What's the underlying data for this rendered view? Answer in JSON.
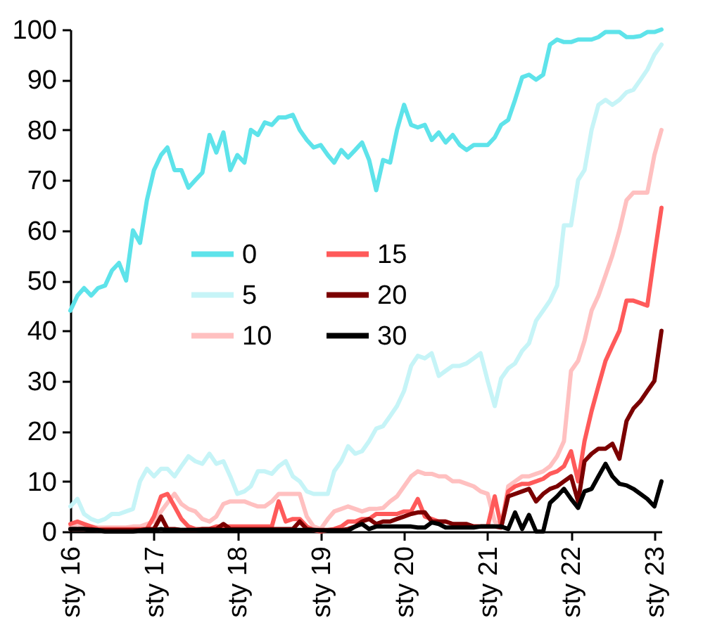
{
  "chart_data": {
    "type": "line",
    "x": [
      "2016-01",
      "2016-02",
      "2016-03",
      "2016-04",
      "2016-05",
      "2016-06",
      "2016-07",
      "2016-08",
      "2016-09",
      "2016-10",
      "2016-11",
      "2016-12",
      "2017-01",
      "2017-02",
      "2017-03",
      "2017-04",
      "2017-05",
      "2017-06",
      "2017-07",
      "2017-08",
      "2017-09",
      "2017-10",
      "2017-11",
      "2017-12",
      "2018-01",
      "2018-02",
      "2018-03",
      "2018-04",
      "2018-05",
      "2018-06",
      "2018-07",
      "2018-08",
      "2018-09",
      "2018-10",
      "2018-11",
      "2018-12",
      "2019-01",
      "2019-02",
      "2019-03",
      "2019-04",
      "2019-05",
      "2019-06",
      "2019-07",
      "2019-08",
      "2019-09",
      "2019-10",
      "2019-11",
      "2019-12",
      "2020-01",
      "2020-02",
      "2020-03",
      "2020-04",
      "2020-05",
      "2020-06",
      "2020-07",
      "2020-08",
      "2020-09",
      "2020-10",
      "2020-11",
      "2020-12",
      "2021-01",
      "2021-02",
      "2021-03",
      "2021-04",
      "2021-05",
      "2021-06",
      "2021-07",
      "2021-08",
      "2021-09",
      "2021-10",
      "2021-11",
      "2021-12",
      "2022-01",
      "2022-02",
      "2022-03",
      "2022-04",
      "2022-05",
      "2022-06",
      "2022-07",
      "2022-08",
      "2022-09",
      "2022-10",
      "2022-11",
      "2022-12",
      "2023-01",
      "2023-02"
    ],
    "series": [
      {
        "name": "0",
        "color": "#5ee3ea",
        "values": [
          44,
          47,
          48.5,
          47,
          48.5,
          49,
          52,
          53.5,
          50,
          60,
          57.5,
          66,
          72,
          75,
          76.5,
          72,
          72,
          68.5,
          70,
          71.5,
          79,
          75.5,
          79.5,
          72,
          75,
          73.5,
          80,
          79,
          81.5,
          81,
          82.5,
          82.5,
          83,
          80,
          78,
          76.5,
          77,
          75,
          73.5,
          76,
          74.5,
          76,
          77.5,
          74,
          68,
          74,
          73.5,
          80,
          85,
          81,
          80.5,
          81,
          78,
          79.5,
          77.5,
          79,
          77,
          76,
          77,
          77,
          77,
          78.5,
          81,
          82,
          86,
          90.5,
          91,
          90,
          91,
          97,
          98,
          97.5,
          97.5,
          98,
          98,
          98,
          98.5,
          99.5,
          99.5,
          99.5,
          98.5,
          98.5,
          98.7,
          99.5,
          99.5,
          100
        ]
      },
      {
        "name": "5",
        "color": "#c6f4f7",
        "values": [
          5,
          6.5,
          3.5,
          2.5,
          2,
          2.5,
          3.5,
          3.5,
          4,
          4.5,
          10,
          12.5,
          11,
          12.5,
          12.5,
          11,
          13,
          15,
          14,
          13.5,
          15.5,
          13.5,
          14,
          11,
          7.5,
          8,
          9,
          12,
          12,
          11.5,
          13,
          14,
          11,
          10,
          8,
          7.5,
          7.5,
          7.5,
          12,
          14,
          17,
          15.5,
          16,
          18,
          20.5,
          21,
          23,
          25,
          28,
          33,
          35,
          34.5,
          35.5,
          31,
          32,
          33,
          33,
          33.5,
          34.5,
          35.5,
          30,
          25,
          30.5,
          32.5,
          33.5,
          36,
          37.5,
          42,
          44,
          46,
          49,
          61,
          61,
          70,
          72,
          80,
          85,
          86,
          85,
          86,
          87.5,
          88,
          90,
          92,
          95,
          97
        ]
      },
      {
        "name": "10",
        "color": "#ffc0c0",
        "values": [
          1,
          1.5,
          1,
          1,
          0.8,
          0.8,
          0.8,
          0.8,
          0.8,
          1,
          1,
          1.5,
          2,
          4,
          5.7,
          7.5,
          5.5,
          4.5,
          4,
          2.5,
          2,
          3,
          5.5,
          6,
          6,
          6,
          5.5,
          5,
          5,
          6,
          7.5,
          7.5,
          7.5,
          7.5,
          3,
          1,
          0.5,
          2.5,
          4,
          4.5,
          5,
          4.5,
          4,
          4.5,
          4.5,
          4.7,
          6,
          7,
          9,
          11,
          12,
          11.5,
          11.5,
          11,
          11,
          10,
          10,
          9.5,
          9,
          8,
          7.5,
          2,
          1,
          9,
          10,
          11,
          11,
          11.5,
          12,
          13,
          15,
          18,
          32,
          34,
          38,
          44,
          47,
          51,
          55,
          60,
          66,
          67.5,
          67.5,
          67.5,
          75,
          80
        ]
      },
      {
        "name": "15",
        "color": "#ff5a5a",
        "values": [
          1.5,
          2,
          1.5,
          1,
          0.5,
          0.5,
          0.5,
          0.5,
          0.5,
          0.5,
          0.5,
          0.5,
          3,
          7,
          7.5,
          5,
          2.5,
          1,
          0.5,
          0.5,
          0.5,
          1,
          1,
          1,
          1,
          1,
          1,
          1,
          1,
          1,
          6,
          2,
          2.5,
          2.5,
          1,
          0.3,
          0,
          0.3,
          0.5,
          1,
          2,
          2,
          2.5,
          2.5,
          3.5,
          3.5,
          3.5,
          3.5,
          4,
          4,
          6.5,
          3,
          2.5,
          2,
          2,
          1.5,
          null,
          1,
          1,
          1,
          1,
          7,
          1,
          8,
          9,
          9.5,
          9.5,
          10,
          10.5,
          11.5,
          12,
          13,
          16,
          10,
          18,
          24,
          29,
          34,
          37,
          40,
          46,
          46,
          45.5,
          45,
          55,
          64.5
        ]
      },
      {
        "name": "20",
        "color": "#7b0000",
        "values": [
          0.5,
          0.5,
          0.5,
          0.5,
          0.3,
          0.3,
          0.3,
          0.3,
          0.3,
          0.3,
          0.3,
          0.5,
          0.5,
          3,
          0.5,
          0.5,
          0.3,
          0.3,
          0.3,
          0.5,
          0.5,
          0.5,
          1.5,
          0.5,
          0.5,
          0.5,
          0.5,
          0.5,
          0.5,
          0.5,
          0.5,
          0.5,
          0.5,
          2,
          0.5,
          0.3,
          0.3,
          0.3,
          0.3,
          0.3,
          0.5,
          1,
          2,
          2.5,
          1.5,
          2,
          2,
          2.5,
          3,
          3.5,
          3.8,
          3.8,
          2,
          2,
          2,
          1.5,
          1.5,
          1.5,
          1,
          1,
          1,
          1,
          0.8,
          7,
          7.5,
          8,
          8.5,
          6,
          7.5,
          8.5,
          9,
          10,
          11,
          6,
          14,
          15.5,
          16.5,
          16.5,
          17.5,
          14.5,
          22,
          24.5,
          26,
          28,
          30,
          40
        ]
      },
      {
        "name": "30",
        "color": "#000000",
        "values": [
          0.5,
          0.5,
          0.5,
          0.3,
          0.3,
          0,
          0,
          0,
          0,
          0,
          0.2,
          0.3,
          0.3,
          0.5,
          0.3,
          0.3,
          0.3,
          0.3,
          0.3,
          0.3,
          0.3,
          0.3,
          0.3,
          0.3,
          0.3,
          0.3,
          0.3,
          0.3,
          0.3,
          0.3,
          0.3,
          0.3,
          0.3,
          0.3,
          0.3,
          0.3,
          0.2,
          0.2,
          0.2,
          0.2,
          0.2,
          1,
          1.5,
          0.5,
          1,
          1,
          1,
          1,
          1,
          1,
          0.8,
          0.8,
          1.8,
          1.5,
          0.8,
          0.8,
          0.8,
          0.8,
          0.8,
          1,
          1,
          1,
          1,
          0.5,
          3.8,
          0.5,
          3.3,
          0,
          0,
          5.7,
          7,
          8.5,
          6.5,
          4.7,
          8,
          8.5,
          11,
          13.5,
          11,
          9.5,
          9.2,
          8.5,
          7.5,
          6.5,
          5,
          10
        ]
      }
    ],
    "xlim": [
      "2016-01",
      "2023-02"
    ],
    "xticks": [
      {
        "value": "2016-01",
        "label": "sty 16"
      },
      {
        "value": "2017-01",
        "label": "sty 17"
      },
      {
        "value": "2018-01",
        "label": "sty 18"
      },
      {
        "value": "2019-01",
        "label": "sty 19"
      },
      {
        "value": "2020-01",
        "label": "sty 20"
      },
      {
        "value": "2021-01",
        "label": "sty 21"
      },
      {
        "value": "2022-01",
        "label": "sty 22"
      },
      {
        "value": "2023-01",
        "label": "sty 23"
      }
    ],
    "ylim": [
      0,
      100
    ],
    "yticks": [
      0,
      10,
      20,
      30,
      40,
      50,
      60,
      70,
      80,
      90,
      100
    ],
    "grid": false,
    "legend": "center",
    "marker": "none",
    "line_style": "solid"
  }
}
